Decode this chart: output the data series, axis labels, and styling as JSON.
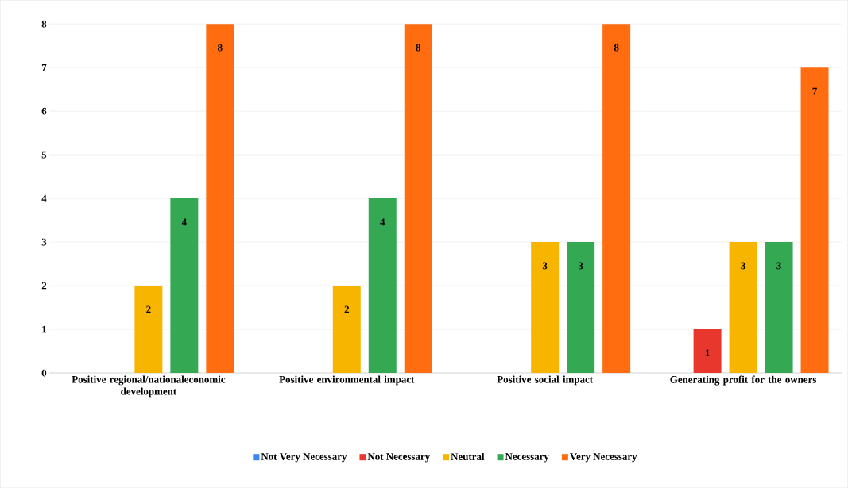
{
  "chart_data": {
    "type": "bar",
    "categories": [
      "Positive regional/nationaleconomic development",
      "Positive environmental impact",
      "Positive social impact",
      "Generating profit for the owners"
    ],
    "series": [
      {
        "name": "Not Very Necessary",
        "color": "#3d85f0",
        "values": [
          0,
          0,
          0,
          0
        ],
        "value_labels": [
          null,
          null,
          null,
          null
        ]
      },
      {
        "name": "Not Necessary",
        "color": "#e8372c",
        "values": [
          0,
          0,
          0,
          1
        ],
        "value_labels": [
          null,
          null,
          null,
          "1"
        ]
      },
      {
        "name": "Neutral",
        "color": "#f7b500",
        "values": [
          2,
          2,
          3,
          3
        ],
        "value_labels": [
          "2",
          "2",
          "3",
          "3"
        ]
      },
      {
        "name": "Necessary",
        "color": "#34a853",
        "values": [
          4,
          4,
          3,
          3
        ],
        "value_labels": [
          "4",
          "4",
          "3",
          "3"
        ]
      },
      {
        "name": "Very Necessary",
        "color": "#ff6d10",
        "values": [
          8,
          8,
          8,
          7
        ],
        "value_labels": [
          "8",
          "8",
          "8",
          "7"
        ]
      }
    ],
    "ylim": [
      0,
      8
    ],
    "yticks": [
      0,
      1,
      2,
      3,
      4,
      5,
      6,
      7,
      8
    ],
    "grid": "y",
    "legend": "bottom"
  }
}
